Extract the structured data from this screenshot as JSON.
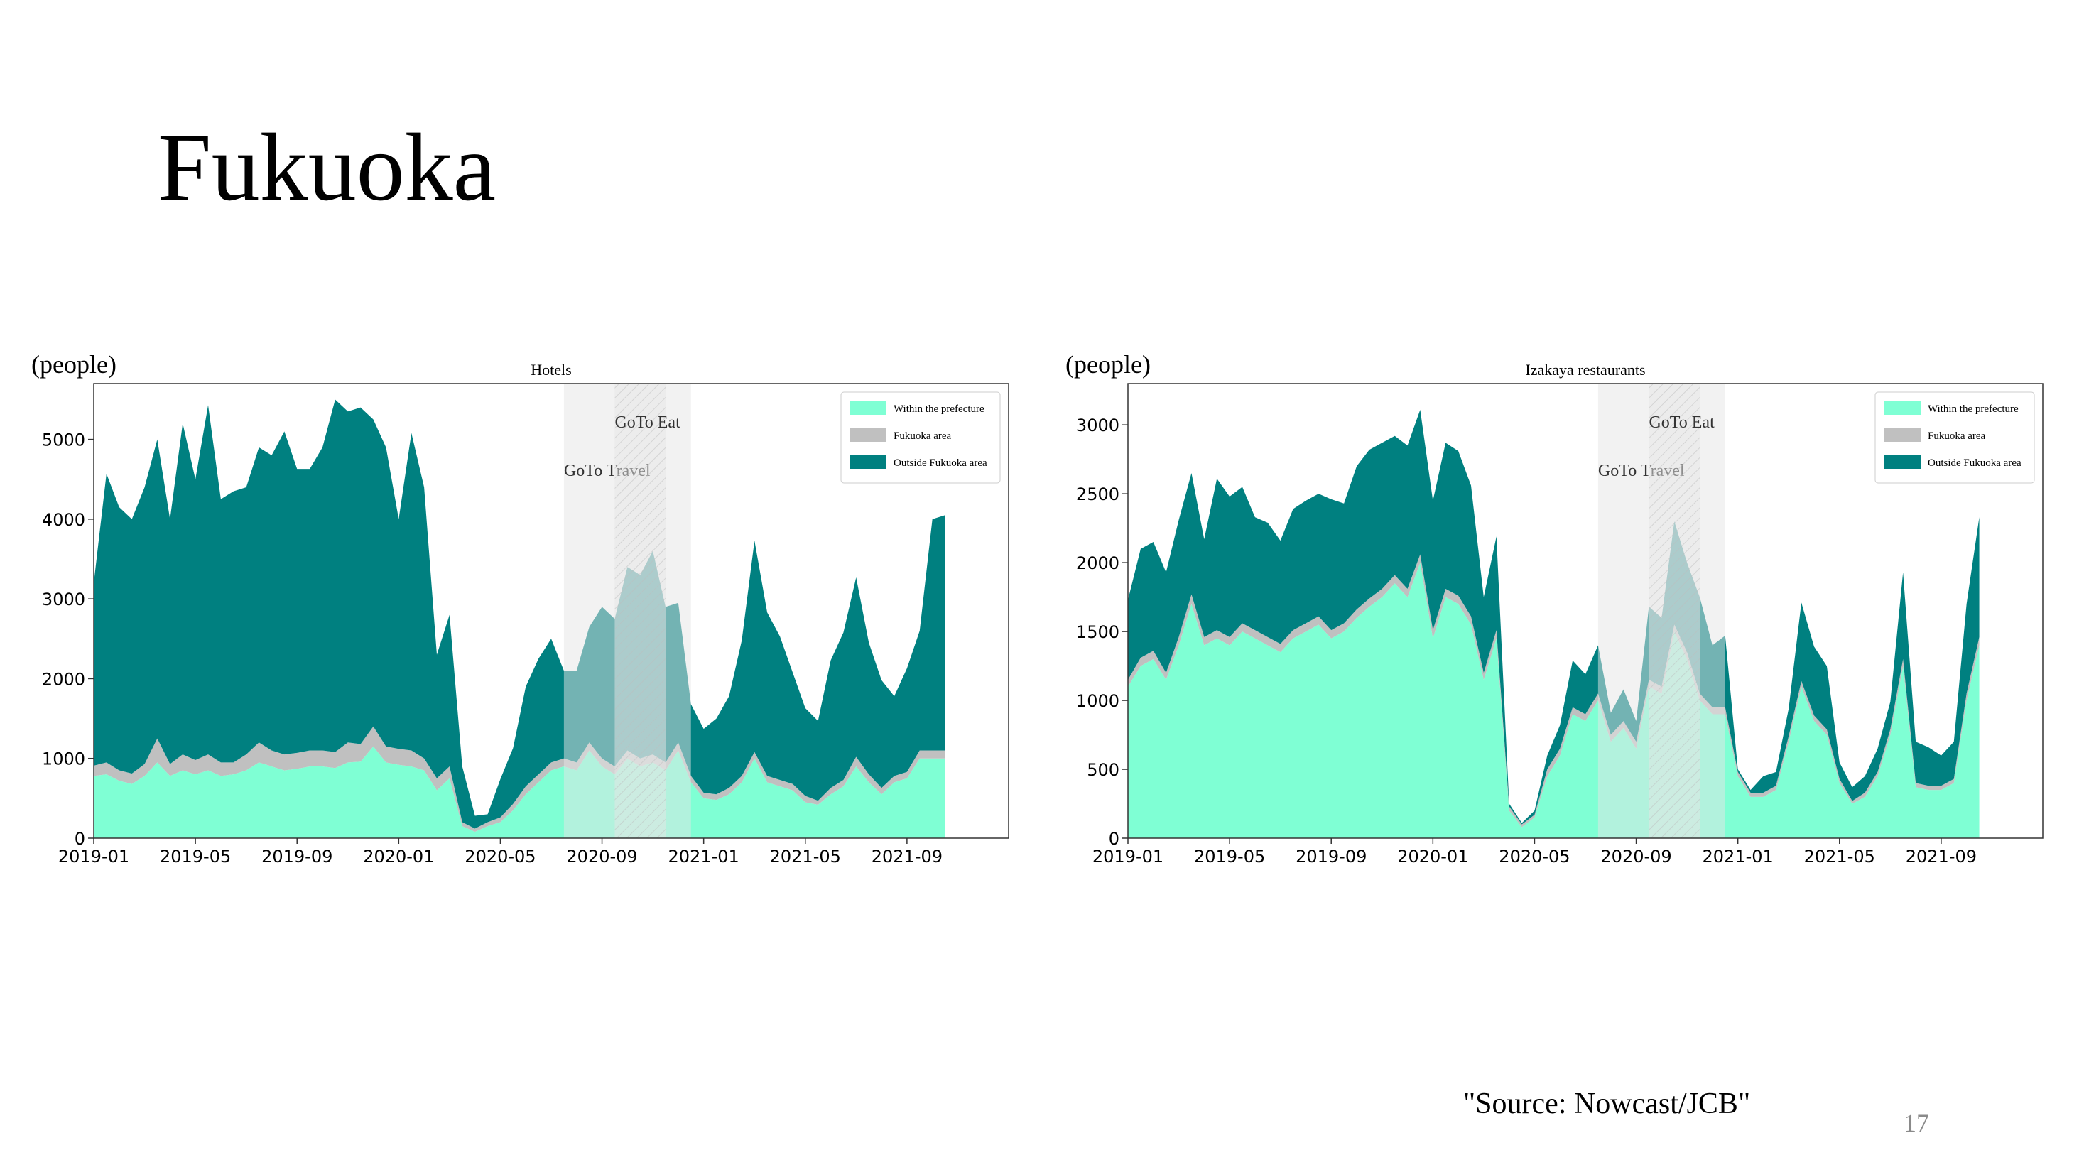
{
  "slide": {
    "title": "Fukuoka",
    "source": "\"Source: Nowcast/JCB\"",
    "page_number": "17",
    "unit_label": "(people)"
  },
  "colors": {
    "within": "#7fffd4",
    "fukuoka": "#c0c0c0",
    "outside": "#008080",
    "shade": "#e6e6e6"
  },
  "chart_data": [
    {
      "type": "area",
      "title": "Hotels",
      "ylim": [
        0,
        5700
      ],
      "yticks": [
        0,
        1000,
        2000,
        3000,
        4000,
        5000
      ],
      "xticks": [
        "2019-01",
        "2019-05",
        "2019-09",
        "2020-01",
        "2020-05",
        "2020-09",
        "2021-01",
        "2021-05",
        "2021-09"
      ],
      "xrange": [
        0,
        36
      ],
      "x": [
        0.0,
        0.5,
        1.0,
        1.5,
        2.0,
        2.5,
        3.0,
        3.5,
        4.0,
        4.5,
        5.0,
        5.5,
        6.0,
        6.5,
        7.0,
        7.5,
        8.0,
        8.5,
        9.0,
        9.5,
        10.0,
        10.5,
        11.0,
        11.5,
        12.0,
        12.5,
        13.0,
        13.5,
        14.0,
        14.5,
        15.0,
        15.5,
        16.0,
        16.5,
        17.0,
        17.5,
        18.0,
        18.5,
        19.0,
        19.5,
        20.0,
        20.5,
        21.0,
        21.5,
        22.0,
        22.5,
        23.0,
        23.5,
        24.0,
        24.5,
        25.0,
        25.5,
        26.0,
        26.5,
        27.0,
        27.5,
        28.0,
        28.5,
        29.0,
        29.5,
        30.0,
        30.5,
        31.0,
        31.5,
        32.0,
        32.5,
        33.0,
        33.5
      ],
      "series": [
        {
          "name": "Within the prefecture",
          "values": [
            780,
            800,
            720,
            680,
            780,
            950,
            780,
            850,
            800,
            850,
            780,
            800,
            850,
            950,
            900,
            850,
            870,
            900,
            900,
            880,
            950,
            960,
            1150,
            950,
            920,
            900,
            850,
            600,
            750,
            150,
            80,
            150,
            200,
            350,
            550,
            700,
            850,
            900,
            850,
            1100,
            900,
            800,
            1000,
            900,
            950,
            850,
            1100,
            700,
            500,
            480,
            550,
            700,
            1000,
            700,
            650,
            600,
            450,
            420,
            550,
            650,
            900,
            700,
            550,
            700,
            750,
            1000,
            1000,
            1000
          ]
        },
        {
          "name": "Fukuoka area",
          "values": [
            130,
            150,
            130,
            130,
            150,
            300,
            150,
            200,
            180,
            200,
            170,
            150,
            200,
            250,
            200,
            200,
            200,
            200,
            200,
            200,
            250,
            220,
            250,
            200,
            200,
            200,
            150,
            150,
            150,
            50,
            40,
            50,
            60,
            80,
            100,
            100,
            100,
            100,
            100,
            100,
            100,
            100,
            100,
            100,
            100,
            100,
            100,
            80,
            70,
            70,
            80,
            80,
            80,
            80,
            80,
            80,
            80,
            50,
            80,
            80,
            120,
            100,
            80,
            80,
            80,
            100,
            100,
            100
          ]
        },
        {
          "name": "Outside Fukuoka area",
          "values": [
            2290,
            3620,
            3300,
            3190,
            3470,
            3750,
            3070,
            4150,
            3520,
            4380,
            3300,
            3400,
            3350,
            3700,
            3700,
            4050,
            3560,
            3530,
            3800,
            4420,
            4150,
            4220,
            3850,
            3750,
            2880,
            3980,
            3400,
            1550,
            1900,
            700,
            160,
            100,
            480,
            700,
            1250,
            1450,
            1550,
            1100,
            1150,
            1450,
            1900,
            1850,
            2300,
            2300,
            2550,
            1950,
            1750,
            900,
            800,
            950,
            1150,
            1700,
            2650,
            2050,
            1800,
            1400,
            1100,
            1000,
            1600,
            1850,
            2250,
            1650,
            1350,
            1000,
            1300,
            1500,
            2900,
            2950
          ]
        }
      ],
      "legend": "top-right",
      "annotations": [
        {
          "label": "GoTo Travel",
          "start": 18.5,
          "end": 23.5
        },
        {
          "label": "GoTo Eat",
          "start": 20.5,
          "end": 22.5
        }
      ]
    },
    {
      "type": "area",
      "title": "Izakaya restaurants",
      "ylim": [
        0,
        3300
      ],
      "yticks": [
        0,
        500,
        1000,
        1500,
        2000,
        2500,
        3000
      ],
      "xticks": [
        "2019-01",
        "2019-05",
        "2019-09",
        "2020-01",
        "2020-05",
        "2020-09",
        "2021-01",
        "2021-05",
        "2021-09"
      ],
      "xrange": [
        0,
        36
      ],
      "x": [
        0.0,
        0.5,
        1.0,
        1.5,
        2.0,
        2.5,
        3.0,
        3.5,
        4.0,
        4.5,
        5.0,
        5.5,
        6.0,
        6.5,
        7.0,
        7.5,
        8.0,
        8.5,
        9.0,
        9.5,
        10.0,
        10.5,
        11.0,
        11.5,
        12.0,
        12.5,
        13.0,
        13.5,
        14.0,
        14.5,
        15.0,
        15.5,
        16.0,
        16.5,
        17.0,
        17.5,
        18.0,
        18.5,
        19.0,
        19.5,
        20.0,
        20.5,
        21.0,
        21.5,
        22.0,
        22.5,
        23.0,
        23.5,
        24.0,
        24.5,
        25.0,
        25.5,
        26.0,
        26.5,
        27.0,
        27.5,
        28.0,
        28.5,
        29.0,
        29.5,
        30.0,
        30.5,
        31.0,
        31.5,
        32.0,
        32.5,
        33.0,
        33.5
      ],
      "series": [
        {
          "name": "Within the prefecture",
          "values": [
            1100,
            1250,
            1300,
            1150,
            1400,
            1700,
            1400,
            1450,
            1400,
            1500,
            1450,
            1400,
            1350,
            1450,
            1500,
            1550,
            1450,
            1500,
            1600,
            1680,
            1750,
            1850,
            1750,
            2000,
            1450,
            1750,
            1700,
            1550,
            1150,
            1450,
            200,
            80,
            150,
            450,
            600,
            900,
            850,
            1000,
            700,
            800,
            650,
            1100,
            1050,
            1500,
            1300,
            1000,
            900,
            900,
            450,
            300,
            300,
            350,
            700,
            1100,
            850,
            750,
            400,
            250,
            300,
            450,
            750,
            1250,
            370,
            350,
            350,
            400,
            1000,
            1400
          ]
        },
        {
          "name": "Fukuoka area",
          "values": [
            50,
            60,
            60,
            50,
            60,
            70,
            60,
            60,
            60,
            60,
            60,
            60,
            60,
            60,
            60,
            60,
            60,
            60,
            60,
            60,
            60,
            60,
            60,
            60,
            60,
            60,
            60,
            60,
            50,
            60,
            30,
            20,
            20,
            50,
            50,
            50,
            50,
            50,
            50,
            50,
            50,
            50,
            50,
            50,
            50,
            50,
            50,
            50,
            30,
            30,
            30,
            30,
            40,
            40,
            40,
            40,
            30,
            20,
            30,
            30,
            40,
            50,
            30,
            30,
            30,
            30,
            50,
            60
          ]
        },
        {
          "name": "Outside Fukuoka area",
          "values": [
            580,
            790,
            790,
            730,
            850,
            880,
            710,
            1100,
            1020,
            990,
            820,
            830,
            750,
            880,
            890,
            890,
            950,
            870,
            1040,
            1080,
            1060,
            1010,
            1040,
            1050,
            940,
            1060,
            1050,
            950,
            550,
            680,
            20,
            10,
            30,
            100,
            170,
            340,
            290,
            350,
            160,
            230,
            150,
            530,
            500,
            750,
            650,
            700,
            450,
            520,
            20,
            20,
            120,
            100,
            200,
            570,
            500,
            460,
            120,
            100,
            120,
            170,
            200,
            630,
            300,
            280,
            220,
            270,
            650,
            870
          ]
        }
      ],
      "legend": "top-right",
      "annotations": [
        {
          "label": "GoTo Travel",
          "start": 18.5,
          "end": 23.5
        },
        {
          "label": "GoTo Eat",
          "start": 20.5,
          "end": 22.5
        }
      ]
    }
  ]
}
